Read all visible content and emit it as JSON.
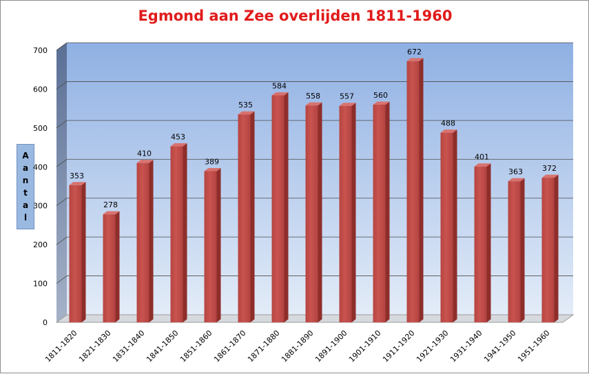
{
  "chart_data": {
    "type": "bar",
    "title": "Egmond aan Zee overlijden 1811-1960",
    "xlabel": "",
    "ylabel": "Aantal",
    "categories": [
      "1811-1820",
      "1821-1830",
      "1831-1840",
      "1841-1850",
      "1851-1860",
      "1861-1870",
      "1871-1880",
      "1881-1890",
      "1891-1900",
      "1901-1910",
      "1911-1920",
      "1921-1930",
      "1931-1940",
      "1941-1950",
      "1951-1960"
    ],
    "values": [
      353,
      278,
      410,
      453,
      389,
      535,
      584,
      558,
      557,
      560,
      672,
      488,
      401,
      363,
      372
    ],
    "ylim": [
      0,
      700
    ],
    "yticks": [
      0,
      100,
      200,
      300,
      400,
      500,
      600,
      700
    ],
    "grid": true,
    "legend": "none",
    "bar_color": "#c0504d",
    "title_color": "#e01b1b",
    "plot_background": "#a8c2ea"
  }
}
